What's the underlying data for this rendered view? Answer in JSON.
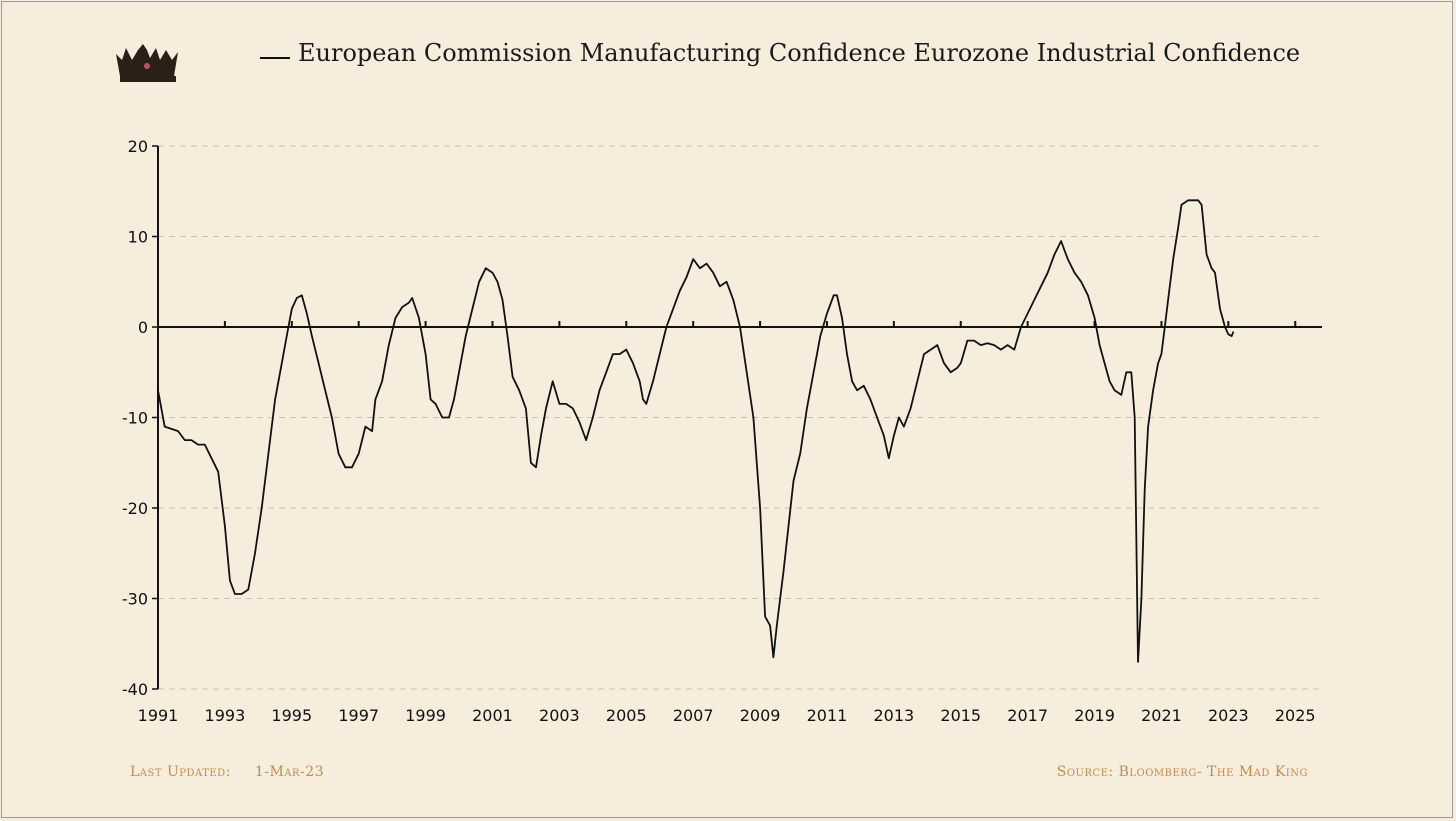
{
  "footer": {
    "last_updated_label": "Last Updated:",
    "last_updated_value": "1-Mar-23",
    "source": "Source: Bloomberg- The Mad King"
  },
  "colors": {
    "background": "#f6eddc",
    "line": "#111111",
    "footer": "#c98a4a",
    "grid": "#c8c2b4"
  },
  "chart_data": {
    "type": "line",
    "title": "",
    "xlabel": "",
    "ylabel": "",
    "legend": "top",
    "grid": true,
    "xlim": [
      1991,
      2025.8
    ],
    "ylim": [
      -40,
      20
    ],
    "yticks": [
      20,
      10,
      0,
      -10,
      -20,
      -30,
      -40
    ],
    "xticks": [
      1991,
      1993,
      1995,
      1997,
      1999,
      2001,
      2003,
      2005,
      2007,
      2009,
      2011,
      2013,
      2015,
      2017,
      2019,
      2021,
      2023,
      2025
    ],
    "series": [
      {
        "name": "European Commission Manufacturing Confidence Eurozone Industrial Confidence",
        "points": [
          [
            1991.0,
            -7
          ],
          [
            1991.2,
            -11
          ],
          [
            1991.6,
            -11.5
          ],
          [
            1991.8,
            -12.5
          ],
          [
            1992.0,
            -12.5
          ],
          [
            1992.2,
            -13
          ],
          [
            1992.4,
            -13
          ],
          [
            1992.6,
            -14.5
          ],
          [
            1992.8,
            -16
          ],
          [
            1993.0,
            -22
          ],
          [
            1993.15,
            -28
          ],
          [
            1993.3,
            -29.5
          ],
          [
            1993.5,
            -29.5
          ],
          [
            1993.7,
            -29
          ],
          [
            1993.9,
            -25
          ],
          [
            1994.1,
            -20
          ],
          [
            1994.3,
            -14
          ],
          [
            1994.5,
            -8
          ],
          [
            1994.7,
            -4
          ],
          [
            1994.9,
            0
          ],
          [
            1995.0,
            2
          ],
          [
            1995.15,
            3.2
          ],
          [
            1995.3,
            3.5
          ],
          [
            1995.45,
            1.5
          ],
          [
            1995.6,
            -1
          ],
          [
            1995.8,
            -4
          ],
          [
            1996.0,
            -7
          ],
          [
            1996.2,
            -10
          ],
          [
            1996.4,
            -14
          ],
          [
            1996.6,
            -15.5
          ],
          [
            1996.8,
            -15.5
          ],
          [
            1997.0,
            -14
          ],
          [
            1997.2,
            -11
          ],
          [
            1997.4,
            -11.5
          ],
          [
            1997.5,
            -8
          ],
          [
            1997.7,
            -6
          ],
          [
            1997.9,
            -2
          ],
          [
            1998.1,
            1
          ],
          [
            1998.3,
            2.2
          ],
          [
            1998.5,
            2.7
          ],
          [
            1998.6,
            3.2
          ],
          [
            1998.8,
            1
          ],
          [
            1999.0,
            -3
          ],
          [
            1999.15,
            -8
          ],
          [
            1999.3,
            -8.5
          ],
          [
            1999.5,
            -10
          ],
          [
            1999.7,
            -10
          ],
          [
            1999.85,
            -8
          ],
          [
            2000.0,
            -5
          ],
          [
            2000.2,
            -1
          ],
          [
            2000.4,
            2
          ],
          [
            2000.6,
            5
          ],
          [
            2000.8,
            6.5
          ],
          [
            2001.0,
            6
          ],
          [
            2001.15,
            5
          ],
          [
            2001.3,
            3
          ],
          [
            2001.45,
            -1
          ],
          [
            2001.6,
            -5.5
          ],
          [
            2001.8,
            -7
          ],
          [
            2002.0,
            -9
          ],
          [
            2002.15,
            -15
          ],
          [
            2002.3,
            -15.5
          ],
          [
            2002.45,
            -12
          ],
          [
            2002.6,
            -9
          ],
          [
            2002.8,
            -6
          ],
          [
            2003.0,
            -8.5
          ],
          [
            2003.2,
            -8.5
          ],
          [
            2003.4,
            -9
          ],
          [
            2003.6,
            -10.5
          ],
          [
            2003.8,
            -12.5
          ],
          [
            2004.0,
            -10
          ],
          [
            2004.2,
            -7
          ],
          [
            2004.4,
            -5
          ],
          [
            2004.6,
            -3
          ],
          [
            2004.8,
            -3
          ],
          [
            2005.0,
            -2.5
          ],
          [
            2005.2,
            -4
          ],
          [
            2005.4,
            -6
          ],
          [
            2005.5,
            -8
          ],
          [
            2005.6,
            -8.5
          ],
          [
            2005.8,
            -6
          ],
          [
            2006.0,
            -3
          ],
          [
            2006.2,
            0
          ],
          [
            2006.4,
            2
          ],
          [
            2006.6,
            4
          ],
          [
            2006.8,
            5.5
          ],
          [
            2007.0,
            7.5
          ],
          [
            2007.2,
            6.5
          ],
          [
            2007.4,
            7
          ],
          [
            2007.6,
            6
          ],
          [
            2007.8,
            4.5
          ],
          [
            2008.0,
            5
          ],
          [
            2008.2,
            3
          ],
          [
            2008.4,
            0
          ],
          [
            2008.6,
            -5
          ],
          [
            2008.8,
            -10
          ],
          [
            2009.0,
            -20
          ],
          [
            2009.15,
            -32
          ],
          [
            2009.3,
            -33
          ],
          [
            2009.4,
            -36.5
          ],
          [
            2009.5,
            -33
          ],
          [
            2009.7,
            -27
          ],
          [
            2009.85,
            -22
          ],
          [
            2010.0,
            -17
          ],
          [
            2010.2,
            -14
          ],
          [
            2010.4,
            -9
          ],
          [
            2010.6,
            -5
          ],
          [
            2010.8,
            -1
          ],
          [
            2011.0,
            1.5
          ],
          [
            2011.2,
            3.5
          ],
          [
            2011.3,
            3.5
          ],
          [
            2011.45,
            1
          ],
          [
            2011.6,
            -3
          ],
          [
            2011.75,
            -6
          ],
          [
            2011.9,
            -7
          ],
          [
            2012.1,
            -6.5
          ],
          [
            2012.3,
            -8
          ],
          [
            2012.5,
            -10
          ],
          [
            2012.7,
            -12
          ],
          [
            2012.85,
            -14.5
          ],
          [
            2013.0,
            -12
          ],
          [
            2013.15,
            -10
          ],
          [
            2013.3,
            -11
          ],
          [
            2013.5,
            -9
          ],
          [
            2013.7,
            -6
          ],
          [
            2013.9,
            -3
          ],
          [
            2014.1,
            -2.5
          ],
          [
            2014.3,
            -2
          ],
          [
            2014.5,
            -4
          ],
          [
            2014.7,
            -5
          ],
          [
            2014.9,
            -4.5
          ],
          [
            2015.0,
            -4
          ],
          [
            2015.2,
            -1.5
          ],
          [
            2015.4,
            -1.5
          ],
          [
            2015.6,
            -2
          ],
          [
            2015.8,
            -1.8
          ],
          [
            2016.0,
            -2
          ],
          [
            2016.2,
            -2.5
          ],
          [
            2016.4,
            -2
          ],
          [
            2016.6,
            -2.5
          ],
          [
            2016.8,
            0
          ],
          [
            2017.0,
            1.5
          ],
          [
            2017.2,
            3
          ],
          [
            2017.4,
            4.5
          ],
          [
            2017.6,
            6
          ],
          [
            2017.8,
            8
          ],
          [
            2018.0,
            9.5
          ],
          [
            2018.1,
            8.5
          ],
          [
            2018.2,
            7.5
          ],
          [
            2018.4,
            6
          ],
          [
            2018.6,
            5
          ],
          [
            2018.8,
            3.5
          ],
          [
            2019.0,
            1
          ],
          [
            2019.15,
            -2
          ],
          [
            2019.3,
            -4
          ],
          [
            2019.45,
            -6
          ],
          [
            2019.6,
            -7
          ],
          [
            2019.8,
            -7.5
          ],
          [
            2019.95,
            -5
          ],
          [
            2020.1,
            -5
          ],
          [
            2020.2,
            -10
          ],
          [
            2020.3,
            -37
          ],
          [
            2020.4,
            -30
          ],
          [
            2020.5,
            -18
          ],
          [
            2020.6,
            -11
          ],
          [
            2020.75,
            -7
          ],
          [
            2020.9,
            -4
          ],
          [
            2021.0,
            -3
          ],
          [
            2021.1,
            0
          ],
          [
            2021.2,
            3
          ],
          [
            2021.35,
            7.5
          ],
          [
            2021.5,
            11
          ],
          [
            2021.6,
            13.5
          ],
          [
            2021.8,
            14
          ],
          [
            2022.0,
            14
          ],
          [
            2022.1,
            14
          ],
          [
            2022.2,
            13.5
          ],
          [
            2022.35,
            8
          ],
          [
            2022.5,
            6.5
          ],
          [
            2022.6,
            6
          ],
          [
            2022.75,
            2
          ],
          [
            2022.9,
            0
          ],
          [
            2023.0,
            -0.8
          ],
          [
            2023.1,
            -1
          ],
          [
            2023.15,
            -0.5
          ]
        ]
      }
    ]
  }
}
